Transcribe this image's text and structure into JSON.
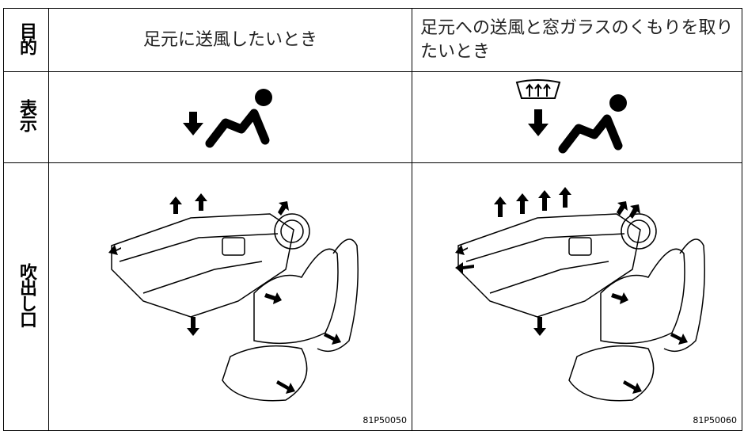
{
  "table": {
    "rows": [
      {
        "label": "目的",
        "cells": [
          "足元に送風したいとき",
          "足元への送風と窓ガラスのくもりを取りたいとき"
        ]
      },
      {
        "label": "表示"
      },
      {
        "label": "吹出し口",
        "cells": [
          "81P50050",
          "81P50060"
        ]
      }
    ]
  }
}
